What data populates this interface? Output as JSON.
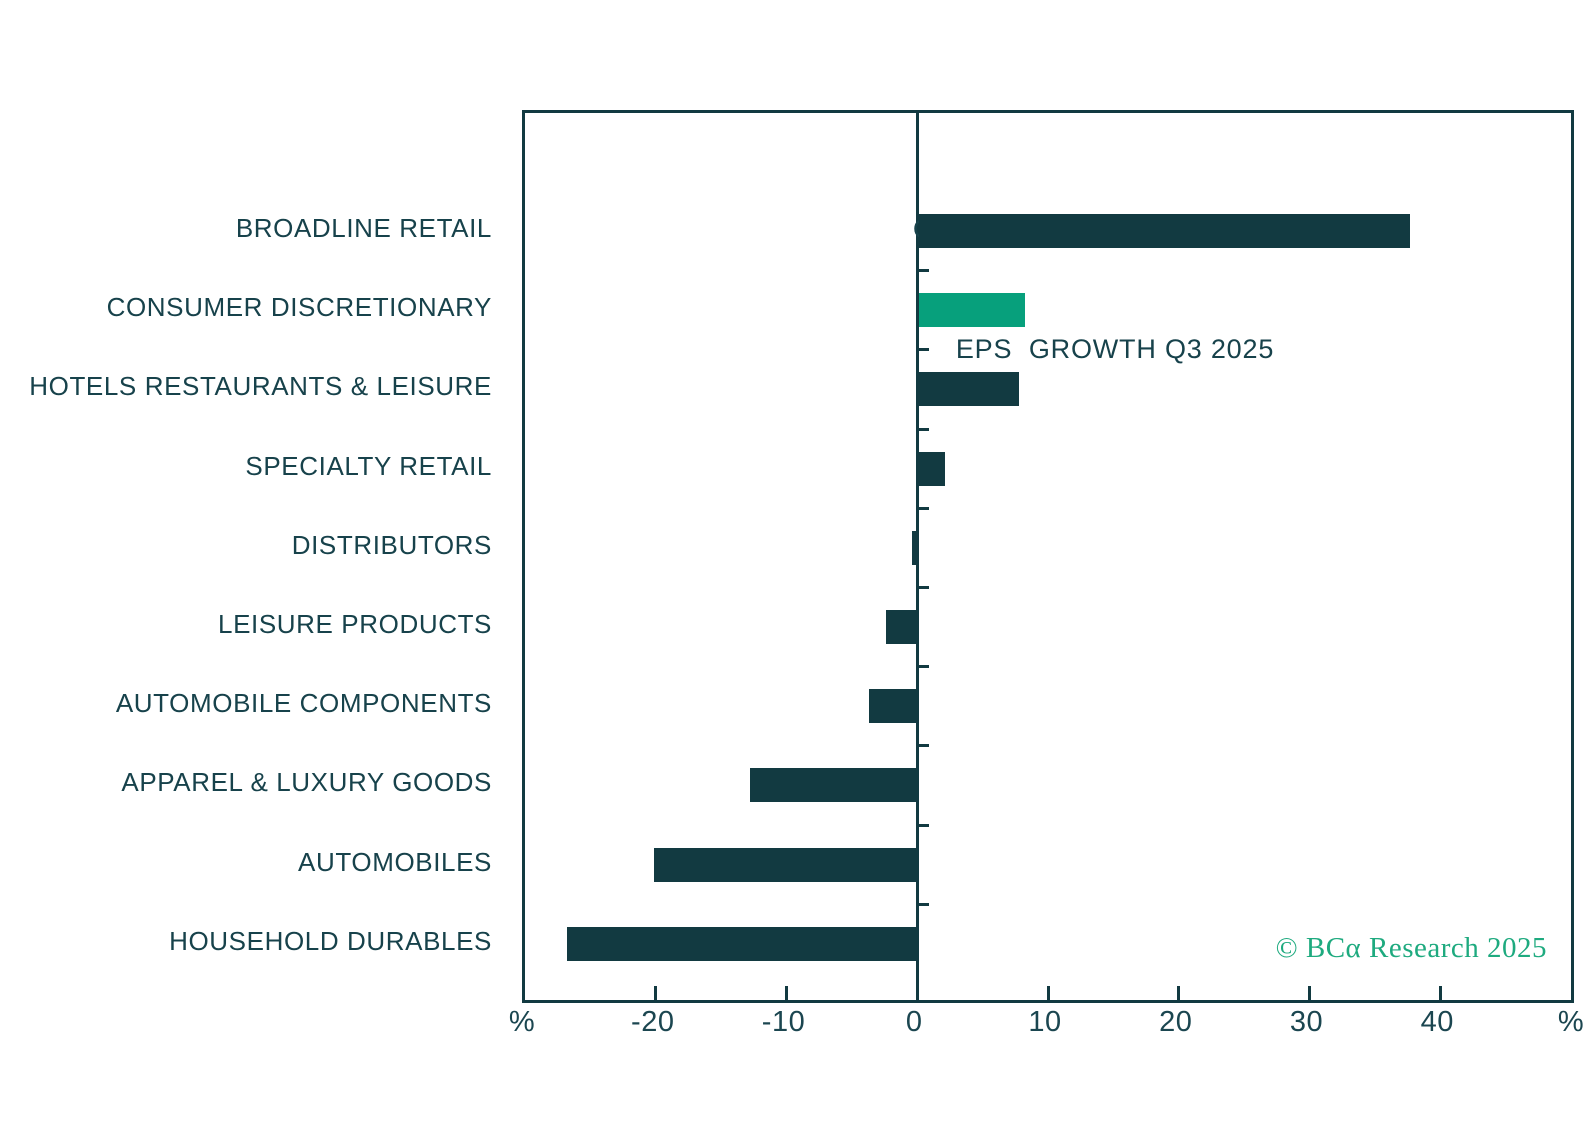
{
  "chart_data": {
    "type": "bar",
    "orientation": "horizontal",
    "title_line1": "CONSUMER DISCRETIONARY",
    "title_line2": "EPS  GROWTH Q3 2025",
    "categories": [
      "BROADLINE RETAIL",
      "CONSUMER DISCRETIONARY",
      "HOTELS RESTAURANTS & LEISURE",
      "SPECIALTY RETAIL",
      "DISTRIBUTORS",
      "LEISURE PRODUCTS",
      "AUTOMOBILE COMPONENTS",
      "APPAREL & LUXURY GOODS",
      "AUTOMOBILES",
      "HOUSEHOLD DURABLES"
    ],
    "values": [
      37.6,
      8.1,
      7.7,
      2.0,
      -0.3,
      -2.3,
      -3.6,
      -12.7,
      -20.0,
      -26.7
    ],
    "unit": "%",
    "xlim": [
      -30,
      50
    ],
    "xticks": [
      -20,
      -10,
      0,
      10,
      20,
      30,
      40
    ],
    "axis_unit_left": "%",
    "axis_unit_right": "%",
    "grid": false,
    "legend": false,
    "highlight_index": 1,
    "colors": {
      "bar_default": "#123a41",
      "bar_highlight": "#07a07c",
      "axis": "#123a41",
      "text": "#17424b"
    }
  },
  "footer": {
    "copyright": "© BCα Research 2025",
    "color": "#1eaa7f"
  }
}
